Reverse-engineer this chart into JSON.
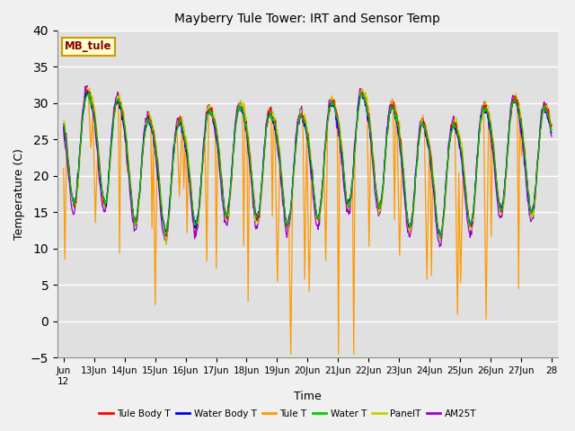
{
  "title": "Mayberry Tule Tower: IRT and Sensor Temp",
  "xlabel": "Time",
  "ylabel": "Temperature (C)",
  "ylim": [
    -5,
    40
  ],
  "yticks": [
    -5,
    0,
    5,
    10,
    15,
    20,
    25,
    30,
    35,
    40
  ],
  "series_colors": {
    "Tule Body T": "#ff0000",
    "Water Body T": "#0000dd",
    "Tule T": "#ff9900",
    "Water T": "#00cc00",
    "PanelT": "#cccc00",
    "AM25T": "#9900cc"
  },
  "legend_label_box": "MB_tule",
  "legend_box_facecolor": "#ffffcc",
  "legend_box_edgecolor": "#cc9900",
  "legend_box_textcolor": "#880000",
  "fig_facecolor": "#f0f0f0",
  "ax_facecolor": "#e0e0e0",
  "grid_color": "#ffffff",
  "seed": 12345
}
